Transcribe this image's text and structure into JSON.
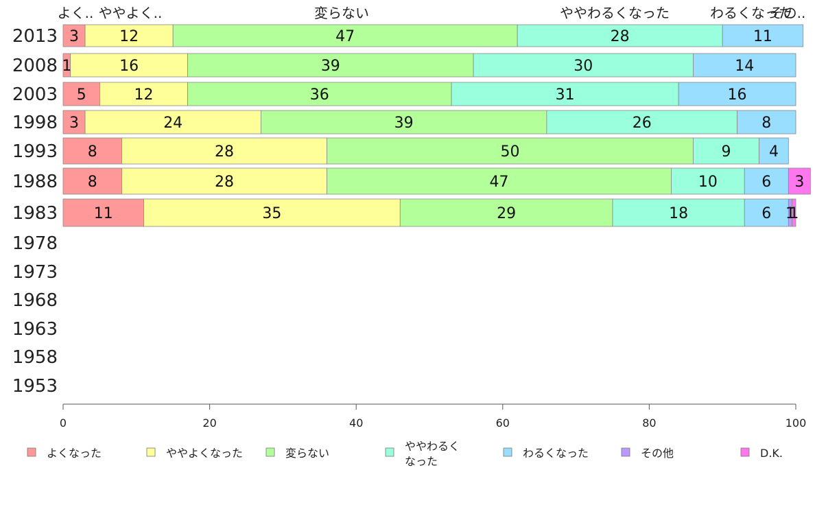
{
  "chart_data": {
    "type": "bar",
    "orientation": "horizontal",
    "stacked": true,
    "categories": [
      "2013",
      "2008",
      "2003",
      "1998",
      "1993",
      "1988",
      "1983",
      "1978",
      "1973",
      "1968",
      "1963",
      "1958",
      "1953"
    ],
    "series": [
      {
        "name": "よくなった",
        "color": "#ff9999",
        "values": [
          3,
          1,
          5,
          3,
          8,
          8,
          11,
          null,
          null,
          null,
          null,
          null,
          null
        ]
      },
      {
        "name": "ややよくなった",
        "color": "#ffff99",
        "values": [
          12,
          16,
          12,
          24,
          28,
          28,
          35,
          null,
          null,
          null,
          null,
          null,
          null
        ]
      },
      {
        "name": "変らない",
        "color": "#b3ff99",
        "values": [
          47,
          39,
          36,
          39,
          50,
          47,
          29,
          null,
          null,
          null,
          null,
          null,
          null
        ]
      },
      {
        "name": "ややわるくなった",
        "color": "#99ffdd",
        "values": [
          28,
          30,
          31,
          26,
          9,
          10,
          18,
          null,
          null,
          null,
          null,
          null,
          null
        ]
      },
      {
        "name": "わるくなった",
        "color": "#99ddff",
        "values": [
          11,
          14,
          16,
          8,
          4,
          6,
          6,
          null,
          null,
          null,
          null,
          null,
          null
        ]
      },
      {
        "name": "その他",
        "color": "#bb99ff",
        "values": [
          0,
          0,
          0,
          0,
          0,
          0,
          0.5,
          null,
          null,
          null,
          null,
          null,
          null
        ]
      },
      {
        "name": "D.K.",
        "color": "#ff77ee",
        "values": [
          0,
          0,
          0,
          0,
          0,
          3,
          0.5,
          null,
          null,
          null,
          null,
          null,
          null
        ]
      }
    ],
    "data_labels": [
      [
        "3",
        "12",
        "47",
        "28",
        "11",
        "",
        ""
      ],
      [
        "1",
        "16",
        "39",
        "30",
        "14",
        "",
        ""
      ],
      [
        "5",
        "12",
        "36",
        "31",
        "16",
        "",
        ""
      ],
      [
        "3",
        "24",
        "39",
        "26",
        "8",
        "",
        ""
      ],
      [
        "8",
        "28",
        "50",
        "9",
        "4",
        "",
        ""
      ],
      [
        "8",
        "28",
        "47",
        "10",
        "6",
        "",
        "3"
      ],
      [
        "11",
        "35",
        "29",
        "18",
        "6",
        "1",
        "1"
      ]
    ],
    "top_labels": [
      "よく..",
      "ややよく..",
      "変らない",
      "ややわるくなった",
      "わるくなった",
      "その.."
    ],
    "xlim": [
      0,
      100
    ],
    "xticks": [
      "0",
      "20",
      "40",
      "60",
      "80",
      "100"
    ],
    "legend": {
      "placement": "bottom",
      "entries": [
        {
          "lines": [
            "よくなった"
          ],
          "color": "#ff9999"
        },
        {
          "lines": [
            "ややよくなった"
          ],
          "color": "#ffff99"
        },
        {
          "lines": [
            "変らない"
          ],
          "color": "#b3ff99"
        },
        {
          "lines": [
            "ややわるく",
            "なった"
          ],
          "color": "#99ffdd"
        },
        {
          "lines": [
            "わるくなった"
          ],
          "color": "#99ddff"
        },
        {
          "lines": [
            "その他"
          ],
          "color": "#bb99ff"
        },
        {
          "lines": [
            "D.K."
          ],
          "color": "#ff77ee"
        }
      ]
    },
    "grid": false
  }
}
